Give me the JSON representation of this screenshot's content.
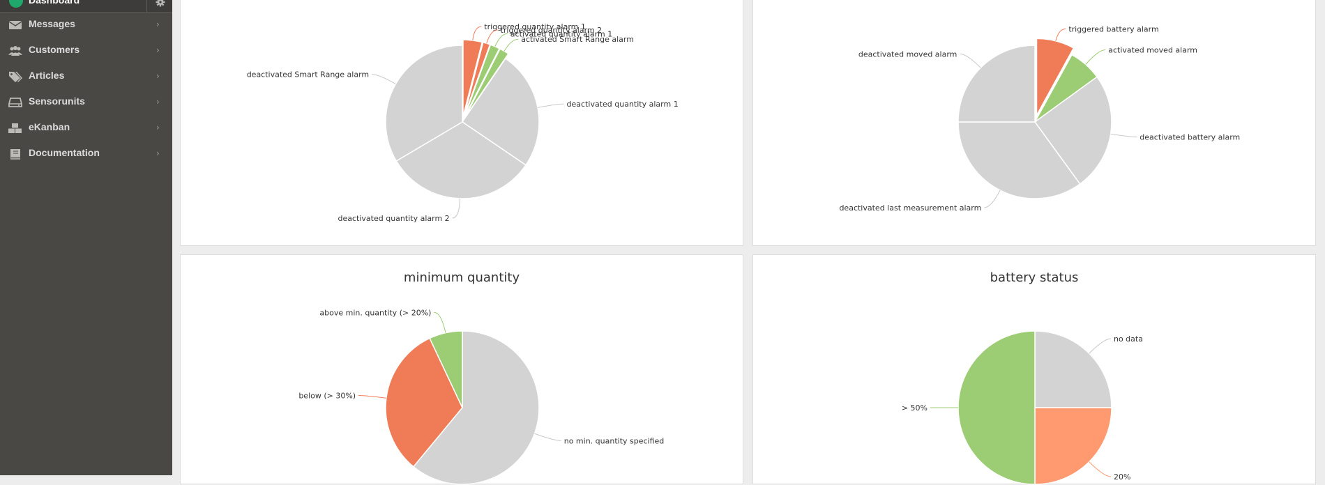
{
  "sidebar": {
    "active": {
      "label": "Dashboard"
    },
    "items": [
      {
        "label": "Messages",
        "icon": "envelope-icon"
      },
      {
        "label": "Customers",
        "icon": "users-icon"
      },
      {
        "label": "Articles",
        "icon": "tags-icon"
      },
      {
        "label": "Sensorunits",
        "icon": "hdd-icon"
      },
      {
        "label": "eKanban",
        "icon": "cubes-icon"
      },
      {
        "label": "Documentation",
        "icon": "book-icon"
      }
    ]
  },
  "colors": {
    "sidebar_bg": "#4a4845",
    "accent_green": "#1fa86a",
    "slice_red": "#f07c57",
    "slice_green": "#9ccc73",
    "slice_grey": "#d3d3d3",
    "slice_salmon": "#ff9a70"
  },
  "chart_data": [
    {
      "type": "pie",
      "title": "",
      "slices": [
        {
          "label": "triggered quantity alarm 1",
          "value": 4,
          "color": "#f07c57",
          "sliced": true
        },
        {
          "label": "triggered quantity alarm 2",
          "value": 1.5,
          "color": "#f07c57",
          "sliced": true
        },
        {
          "label": "activated quantity alarm 1",
          "value": 2,
          "color": "#9ccc73",
          "sliced": true
        },
        {
          "label": "activated Smart Range alarm",
          "value": 2,
          "color": "#9ccc73",
          "sliced": true
        },
        {
          "label": "deactivated quantity alarm 1",
          "value": 25,
          "color": "#d3d3d3"
        },
        {
          "label": "deactivated quantity alarm 2",
          "value": 32,
          "color": "#d3d3d3"
        },
        {
          "label": "deactivated Smart Range alarm",
          "value": 33.5,
          "color": "#d3d3d3"
        }
      ]
    },
    {
      "type": "pie",
      "title": "",
      "slices": [
        {
          "label": "triggered battery alarm",
          "value": 8,
          "color": "#f07c57",
          "sliced": true
        },
        {
          "label": "activated moved alarm",
          "value": 7,
          "color": "#9ccc73"
        },
        {
          "label": "deactivated battery alarm",
          "value": 25,
          "color": "#d3d3d3"
        },
        {
          "label": "deactivated last measurement alarm",
          "value": 35,
          "color": "#d3d3d3"
        },
        {
          "label": "deactivated moved alarm",
          "value": 25,
          "color": "#d3d3d3"
        }
      ]
    },
    {
      "type": "pie",
      "title": "minimum quantity",
      "slices": [
        {
          "label": "no min. quantity specified",
          "value": 61,
          "color": "#d3d3d3"
        },
        {
          "label": "below (> 30%)",
          "value": 32,
          "color": "#f07c57"
        },
        {
          "label": "above min. quantity (> 20%)",
          "value": 7,
          "color": "#9ccc73"
        }
      ]
    },
    {
      "type": "pie",
      "title": "battery status",
      "slices": [
        {
          "label": "no data",
          "value": 25,
          "color": "#d3d3d3"
        },
        {
          "label": "20%",
          "value": 25,
          "color": "#ff9a70"
        },
        {
          "label": "> 50%",
          "value": 50,
          "color": "#9ccc73"
        }
      ]
    }
  ]
}
